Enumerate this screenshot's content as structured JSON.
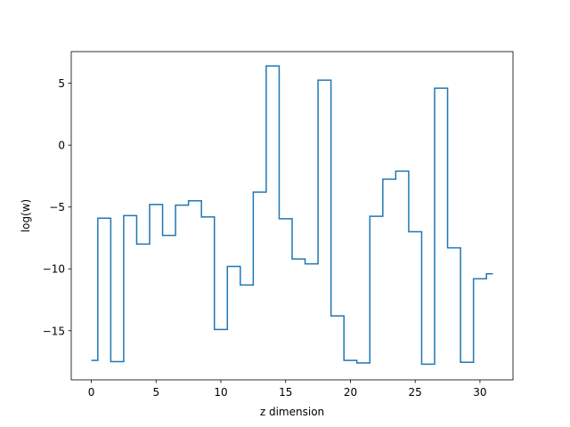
{
  "chart_data": {
    "type": "line",
    "drawstyle": "steps-mid",
    "title": "",
    "xlabel": "z dimension",
    "ylabel": "log(w)",
    "xlim": [
      -1.55,
      32.55
    ],
    "ylim": [
      -18.97,
      7.56
    ],
    "xticks": [
      0,
      5,
      10,
      15,
      20,
      25,
      30
    ],
    "xtick_labels": [
      "0",
      "5",
      "10",
      "15",
      "20",
      "25",
      "30"
    ],
    "yticks": [
      -15,
      -10,
      -5,
      0,
      5
    ],
    "ytick_labels": [
      "−15",
      "−10",
      "−5",
      "0",
      "5"
    ],
    "grid": false,
    "line_color": "#1f77b4",
    "series": [
      {
        "x": [
          0,
          1,
          2,
          3,
          4,
          5,
          6,
          7,
          8,
          9,
          10,
          11,
          12,
          13,
          14,
          15,
          16,
          17,
          18,
          19,
          20,
          21,
          22,
          23,
          24,
          25,
          26,
          27,
          28,
          29,
          30,
          31
        ],
        "values": [
          -17.4,
          -5.9,
          -17.5,
          -5.7,
          -8.0,
          -4.8,
          -7.3,
          -4.85,
          -4.5,
          -5.8,
          -14.9,
          -9.8,
          -11.3,
          -3.8,
          6.4,
          -5.95,
          -9.2,
          -9.6,
          5.25,
          -13.8,
          -17.4,
          -17.6,
          -5.75,
          -2.75,
          -2.1,
          -7.0,
          -17.7,
          4.6,
          -8.3,
          -17.55,
          -10.8,
          -10.4
        ]
      }
    ]
  }
}
